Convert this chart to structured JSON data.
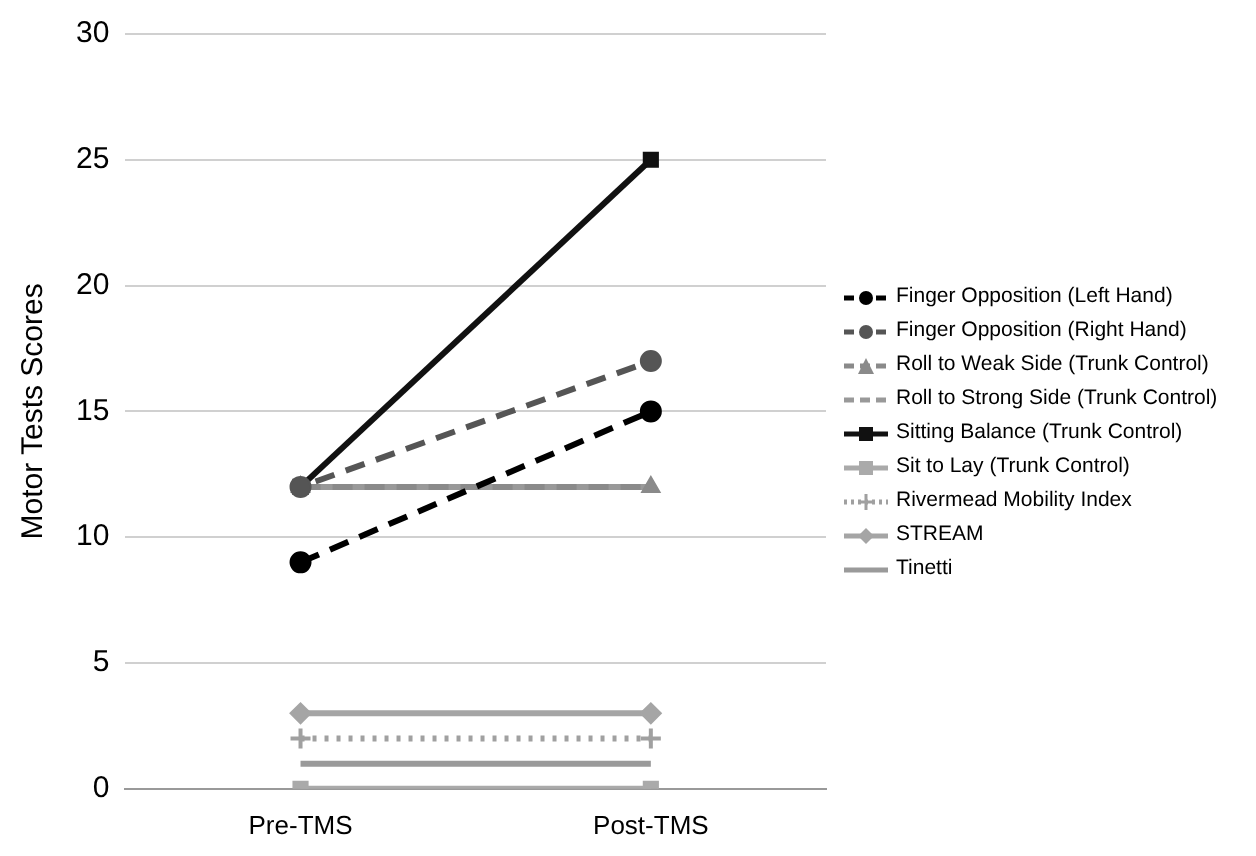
{
  "chart_data": {
    "type": "line",
    "ylabel": "Motor Tests Scores",
    "categories": [
      "Pre-TMS",
      "Post-TMS"
    ],
    "ylim": [
      0,
      30
    ],
    "yticks": [
      0,
      5,
      10,
      15,
      20,
      25,
      30
    ],
    "grid": "y",
    "legend": "right",
    "series": [
      {
        "name": "Finger Opposition (Left Hand)",
        "color": "#000000",
        "values": [
          9,
          15
        ],
        "marker": "circle",
        "line_style": "dashed"
      },
      {
        "name": "Finger Opposition (Right Hand)",
        "color": "#555555",
        "values": [
          12,
          17
        ],
        "marker": "circle",
        "line_style": "dashed"
      },
      {
        "name": "Roll to Weak Side (Trunk Control)",
        "color": "#8a8a8a",
        "values": [
          12,
          12
        ],
        "marker": "triangle",
        "line_style": "dashed"
      },
      {
        "name": "Roll to Strong Side (Trunk Control)",
        "color": "#999999",
        "values": [
          12,
          12
        ],
        "marker": "none",
        "line_style": "dashed"
      },
      {
        "name": "Sitting Balance (Trunk Control)",
        "color": "#111111",
        "values": [
          12,
          25
        ],
        "marker": "square",
        "line_style": "solid"
      },
      {
        "name": "Sit to Lay (Trunk Control)",
        "color": "#aaaaaa",
        "values": [
          0,
          0
        ],
        "marker": "square",
        "line_style": "solid"
      },
      {
        "name": "Rivermead Mobility Index",
        "color": "#a0a0a0",
        "values": [
          2,
          2
        ],
        "marker": "cross",
        "line_style": "dotted"
      },
      {
        "name": "STREAM",
        "color": "#a5a5a5",
        "values": [
          3,
          3
        ],
        "marker": "diamond",
        "line_style": "solid"
      },
      {
        "name": "Tinetti",
        "color": "#9a9a9a",
        "values": [
          1,
          1
        ],
        "marker": "none",
        "line_style": "solid"
      }
    ]
  }
}
